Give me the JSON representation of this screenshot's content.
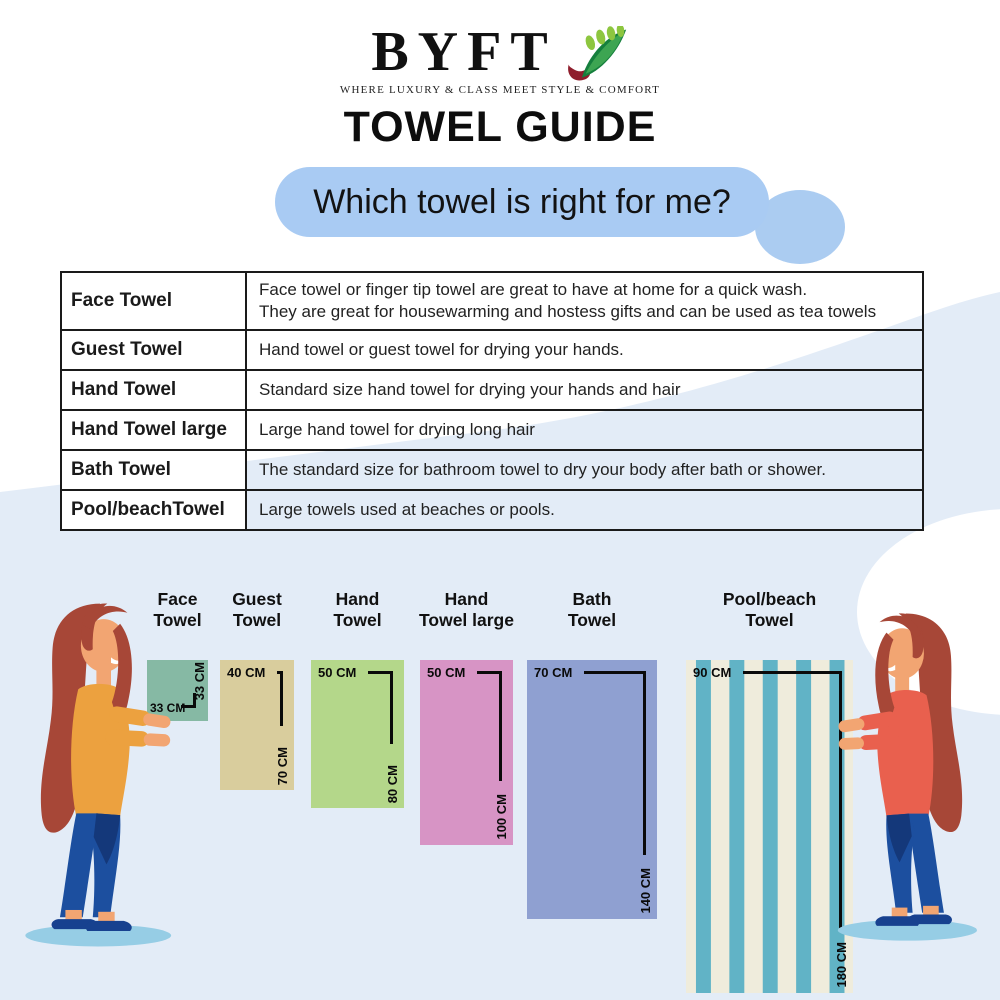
{
  "brand": {
    "name": "BYFT",
    "tagline": "WHERE LUXURY & CLASS MEET STYLE & COMFORT",
    "leaf_icon": "leaf-branch-icon"
  },
  "header": {
    "title": "TOWEL GUIDE",
    "question": "Which towel is right for me?"
  },
  "guide_table": {
    "rows": [
      {
        "label": "Face Towel",
        "description": "Face towel or finger tip towel are great to have at home for a quick wash.\nThey are great for housewarming and hostess gifts and can be used as tea towels"
      },
      {
        "label": "Guest Towel",
        "description": "Hand towel or guest towel for drying your hands."
      },
      {
        "label": "Hand Towel",
        "description": "Standard size hand towel for drying your hands and hair"
      },
      {
        "label": "Hand Towel large",
        "description": "Large hand towel for drying long hair"
      },
      {
        "label": "Bath Towel",
        "description": "The standard size for bathroom towel to dry your body after bath or shower."
      },
      {
        "label": "Pool/beachTowel",
        "description": "Large towels used at beaches or pools."
      }
    ]
  },
  "chart_data": {
    "type": "table",
    "title": "Towel size comparison",
    "unit": "CM",
    "items": [
      {
        "label_line1": "Face",
        "label_line2": "Towel",
        "width_cm": 33,
        "height_cm": 33,
        "width_label": "33 CM",
        "height_label": "33 CM",
        "color": "#86b9a4",
        "annotation": "corner"
      },
      {
        "label_line1": "Guest",
        "label_line2": "Towel",
        "width_cm": 40,
        "height_cm": 70,
        "width_label": "40 CM",
        "height_label": "70 CM",
        "color": "#d9cd9d",
        "annotation": "right-line"
      },
      {
        "label_line1": "Hand",
        "label_line2": "Towel",
        "width_cm": 50,
        "height_cm": 80,
        "width_label": "50 CM",
        "height_label": "80 CM",
        "color": "#b4d78a",
        "annotation": "right-line"
      },
      {
        "label_line1": "Hand",
        "label_line2": "Towel large",
        "width_cm": 50,
        "height_cm": 100,
        "width_label": "50 CM",
        "height_label": "100 CM",
        "color": "#d794c5",
        "annotation": "right-line"
      },
      {
        "label_line1": "Bath",
        "label_line2": "Towel",
        "width_cm": 70,
        "height_cm": 140,
        "width_label": "70 CM",
        "height_label": "140 CM",
        "color": "#8fa0d1",
        "annotation": "right-line"
      },
      {
        "label_line1": "Pool/beach",
        "label_line2": "Towel",
        "width_cm": 90,
        "height_cm": 180,
        "width_label": "90 CM",
        "height_label": "180 CM",
        "color": "#efecdc",
        "stripe_color": "#61b3c6",
        "annotation": "right-line"
      }
    ]
  },
  "colors": {
    "question_pill_bg": "#a9cbf3",
    "background_blob": "#e3ecf7",
    "side_circle": "#abccf1",
    "dimension_line": "#0a0a0a",
    "logo_leaf_dark_green": "#157f3d",
    "logo_leaf_mid_green": "#3da552",
    "logo_leaf_light_green": "#8dc63f",
    "logo_stem_red": "#8f1d2c",
    "illustration": {
      "hair": "#a74737",
      "skin": "#f2a572",
      "top_left_woman": "#eca13f",
      "top_right_woman": "#e9604e",
      "jeans": "#1c4f9f",
      "jeans_shade": "#14387a",
      "shoes": "#17418f",
      "floor_shadow": "#96cde5"
    }
  }
}
